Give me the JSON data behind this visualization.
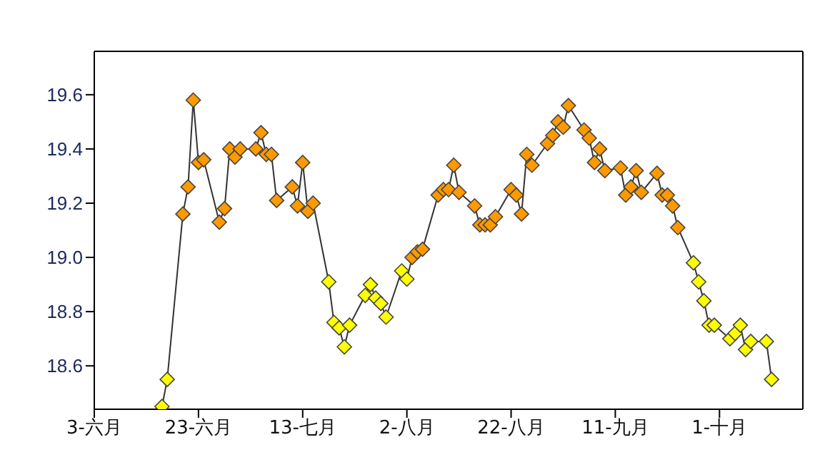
{
  "chart_data": {
    "type": "line",
    "marker": "diamond",
    "line_style": "solid",
    "x": [
      "--06-16",
      "--06-17",
      "--06-20",
      "--06-21",
      "--06-22",
      "--06-23",
      "--06-24",
      "--06-27",
      "--06-28",
      "--06-29",
      "--06-30",
      "--07-01",
      "--07-04",
      "--07-05",
      "--07-06",
      "--07-07",
      "--07-08",
      "--07-11",
      "--07-12",
      "--07-13",
      "--07-14",
      "--07-15",
      "--07-18",
      "--07-19",
      "--07-20",
      "--07-21",
      "--07-22",
      "--07-25",
      "--07-26",
      "--07-27",
      "--07-28",
      "--07-29",
      "--08-01",
      "--08-02",
      "--08-03",
      "--08-04",
      "--08-05",
      "--08-08",
      "--08-09",
      "--08-10",
      "--08-11",
      "--08-12",
      "--08-15",
      "--08-16",
      "--08-17",
      "--08-18",
      "--08-19",
      "--08-22",
      "--08-23",
      "--08-24",
      "--08-25",
      "--08-26",
      "--08-29",
      "--08-30",
      "--08-31",
      "--09-01",
      "--09-02",
      "--09-05",
      "--09-06",
      "--09-07",
      "--09-08",
      "--09-09",
      "--09-12",
      "--09-13",
      "--09-14",
      "--09-15",
      "--09-16",
      "--09-19",
      "--09-20",
      "--09-21",
      "--09-22",
      "--09-23",
      "--09-26",
      "--09-27",
      "--09-28",
      "--09-29",
      "--09-30",
      "--10-03",
      "--10-04",
      "--10-05",
      "--10-06",
      "--10-07",
      "--10-10",
      "--10-11"
    ],
    "series": [
      {
        "color": "#333333",
        "values": [
          18.45,
          18.55,
          19.16,
          19.26,
          19.58,
          19.35,
          19.36,
          19.13,
          19.18,
          19.4,
          19.37,
          19.4,
          19.4,
          19.46,
          19.38,
          19.38,
          19.21,
          19.26,
          19.19,
          19.35,
          19.17,
          19.2,
          18.91,
          18.76,
          18.74,
          18.67,
          18.75,
          18.86,
          18.9,
          18.85,
          18.83,
          18.78,
          18.95,
          18.92,
          19.0,
          19.02,
          19.03,
          19.23,
          19.25,
          19.25,
          19.34,
          19.24,
          19.19,
          19.12,
          19.12,
          19.12,
          19.15,
          19.25,
          19.23,
          19.16,
          19.38,
          19.34,
          19.42,
          19.45,
          19.5,
          19.48,
          19.56,
          19.47,
          19.44,
          19.35,
          19.4,
          19.32,
          19.33,
          19.23,
          19.26,
          19.32,
          19.24,
          19.31,
          19.23,
          19.23,
          19.19,
          19.11,
          18.98,
          18.91,
          18.84,
          18.75,
          18.75,
          18.7,
          18.72,
          18.75,
          18.66,
          18.69,
          18.69,
          18.55
        ],
        "colors": [
          "#ffff00",
          "#ffff00",
          "#ff9900",
          "#ff9900",
          "#ff9900",
          "#ff9900",
          "#ff9900",
          "#ff9900",
          "#ff9900",
          "#ff9900",
          "#ff9900",
          "#ff9900",
          "#ff9900",
          "#ff9900",
          "#ff9900",
          "#ff9900",
          "#ff9900",
          "#ff9900",
          "#ff9900",
          "#ff9900",
          "#ff9900",
          "#ff9900",
          "#ffff00",
          "#ffff00",
          "#ffff00",
          "#ffff00",
          "#ffff00",
          "#ffff00",
          "#ffff00",
          "#ffff00",
          "#ffff00",
          "#ffff00",
          "#ffff00",
          "#ffff00",
          "#ff9900",
          "#ff9900",
          "#ff9900",
          "#ff9900",
          "#ff9900",
          "#ff9900",
          "#ff9900",
          "#ff9900",
          "#ff9900",
          "#ff9900",
          "#ff9900",
          "#ff9900",
          "#ff9900",
          "#ff9900",
          "#ff9900",
          "#ff9900",
          "#ff9900",
          "#ff9900",
          "#ff9900",
          "#ff9900",
          "#ff9900",
          "#ff9900",
          "#ff9900",
          "#ff9900",
          "#ff9900",
          "#ff9900",
          "#ff9900",
          "#ff9900",
          "#ff9900",
          "#ff9900",
          "#ff9900",
          "#ff9900",
          "#ff9900",
          "#ff9900",
          "#ff9900",
          "#ff9900",
          "#ff9900",
          "#ff9900",
          "#ffff00",
          "#ffff00",
          "#ffff00",
          "#ffff00",
          "#ffff00",
          "#ffff00",
          "#ffff00",
          "#ffff00",
          "#ffff00",
          "#ffff00",
          "#ffff00",
          "#ffff00"
        ]
      }
    ],
    "xlim": [
      "--06-03",
      "--10-17"
    ],
    "xticks": [
      {
        "value": "--06-03",
        "label": "3-六月"
      },
      {
        "value": "--06-23",
        "label": "23-六月"
      },
      {
        "value": "--07-13",
        "label": "13-七月"
      },
      {
        "value": "--08-02",
        "label": "2-八月"
      },
      {
        "value": "--08-22",
        "label": "22-八月"
      },
      {
        "value": "--09-11",
        "label": "11-九月"
      },
      {
        "value": "--10-01",
        "label": "1-十月"
      }
    ],
    "ylim": [
      18.44,
      19.76
    ],
    "yticks": [
      {
        "value": 18.6,
        "label": "18.6"
      },
      {
        "value": 18.8,
        "label": "18.8"
      },
      {
        "value": 19.0,
        "label": "19.0"
      },
      {
        "value": 19.2,
        "label": "19.2"
      },
      {
        "value": 19.4,
        "label": "19.4"
      },
      {
        "value": 19.6,
        "label": "19.6"
      }
    ]
  }
}
